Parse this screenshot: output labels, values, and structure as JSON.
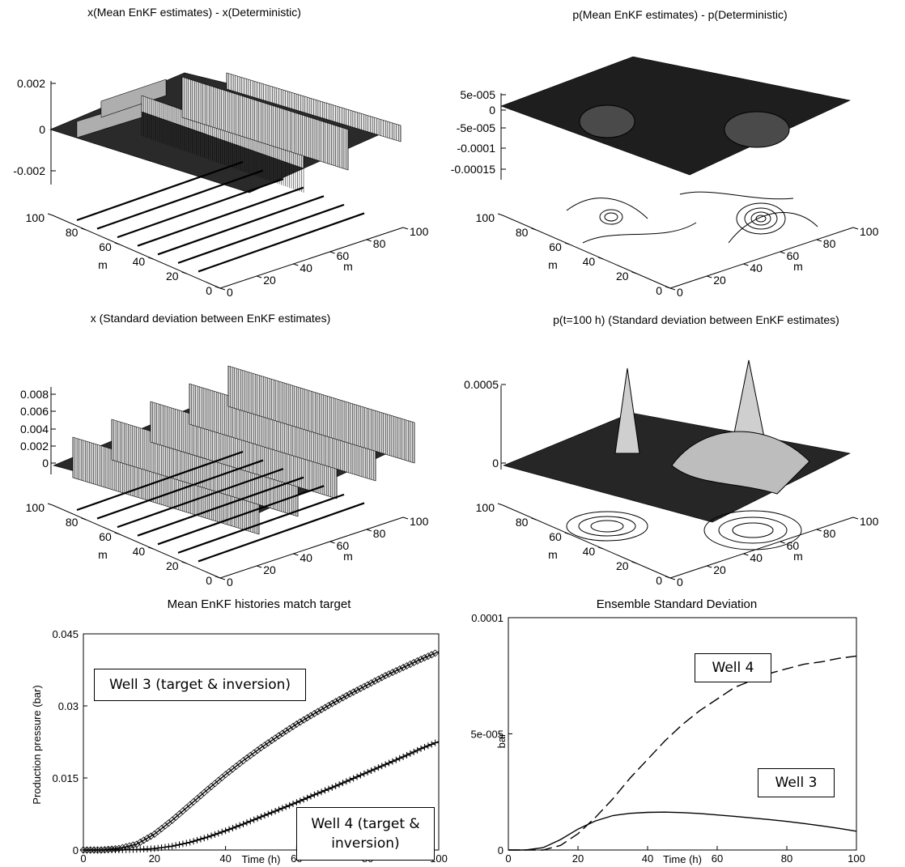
{
  "chart_data": [
    {
      "type": "surface",
      "title": "x(Mean EnKF estimates) - x(Deterministic)",
      "zticks": [
        "0.002",
        "0",
        "-0.002"
      ],
      "xticks": [
        "0",
        "20",
        "40",
        "60",
        "80",
        "100"
      ],
      "yticks": [
        "0",
        "20",
        "40",
        "60",
        "80",
        "100"
      ],
      "xlabel": "m",
      "ylabel": "m"
    },
    {
      "type": "surface",
      "title": "p(Mean EnKF estimates) - p(Deterministic)",
      "zticks": [
        "5e-005",
        "0",
        "-5e-005",
        "-0.0001",
        "-0.00015"
      ],
      "xticks": [
        "0",
        "20",
        "40",
        "60",
        "80",
        "100"
      ],
      "yticks": [
        "0",
        "20",
        "40",
        "60",
        "80",
        "100"
      ],
      "xlabel": "m",
      "ylabel": "m"
    },
    {
      "type": "surface",
      "title": "x (Standard deviation between EnKF estimates)",
      "zticks": [
        "0.008",
        "0.006",
        "0.004",
        "0.002",
        "0"
      ],
      "xticks": [
        "0",
        "20",
        "40",
        "60",
        "80",
        "100"
      ],
      "yticks": [
        "0",
        "20",
        "40",
        "60",
        "80",
        "100"
      ],
      "xlabel": "m",
      "ylabel": "m"
    },
    {
      "type": "surface",
      "title": "p(t=100 h) (Standard deviation between EnKF estimates)",
      "zticks": [
        "0.0005",
        "0"
      ],
      "xticks": [
        "0",
        "20",
        "40",
        "60",
        "80",
        "100"
      ],
      "yticks": [
        "0",
        "20",
        "40",
        "60",
        "80",
        "100"
      ],
      "xlabel": "m",
      "ylabel": "m"
    },
    {
      "type": "line",
      "title": "Mean EnKF histories match target",
      "xlabel": "Time (h)",
      "ylabel": "Production pressure (bar)",
      "xlim": [
        0,
        100
      ],
      "ylim": [
        0,
        0.045
      ],
      "xticks": [
        "0",
        "20",
        "40",
        "60",
        "80",
        "100"
      ],
      "yticks": [
        "0",
        "0.015",
        "0.03",
        "0.045"
      ],
      "series": [
        {
          "name": "Well 3 (target & inversion)",
          "marker": "diamond",
          "x": [
            0,
            5,
            10,
            15,
            20,
            25,
            30,
            35,
            40,
            45,
            50,
            55,
            60,
            65,
            70,
            75,
            80,
            85,
            90,
            95,
            100
          ],
          "y": [
            0,
            0,
            0.0003,
            0.0012,
            0.0033,
            0.0062,
            0.0094,
            0.0126,
            0.0157,
            0.0186,
            0.0213,
            0.0238,
            0.0262,
            0.0284,
            0.0305,
            0.0325,
            0.0344,
            0.0363,
            0.038,
            0.0397,
            0.0413
          ]
        },
        {
          "name": "Well 4 (target & inversion)",
          "marker": "plus",
          "x": [
            0,
            5,
            10,
            15,
            20,
            25,
            30,
            35,
            40,
            45,
            50,
            55,
            60,
            65,
            70,
            75,
            80,
            85,
            90,
            95,
            100
          ],
          "y": [
            0,
            0,
            0,
            0.0001,
            0.0003,
            0.0008,
            0.0016,
            0.0027,
            0.004,
            0.0054,
            0.0069,
            0.0084,
            0.0099,
            0.0115,
            0.013,
            0.0146,
            0.0162,
            0.0178,
            0.0194,
            0.0211,
            0.0226
          ]
        }
      ]
    },
    {
      "type": "line",
      "title": "Ensemble Standard Deviation",
      "xlabel": "Time (h)",
      "ylabel": "bar",
      "xlim": [
        0,
        100
      ],
      "ylim": [
        0,
        0.0001
      ],
      "xticks": [
        "0",
        "20",
        "40",
        "60",
        "80",
        "100"
      ],
      "yticks": [
        "0",
        "5e-005",
        "0.0001"
      ],
      "series": [
        {
          "name": "Well 3",
          "style": "solid",
          "x": [
            0,
            5,
            10,
            15,
            20,
            25,
            30,
            35,
            40,
            45,
            50,
            55,
            60,
            65,
            70,
            75,
            80,
            85,
            90,
            95,
            100
          ],
          "y": [
            0,
            0,
            1e-06,
            4.5e-06,
            9e-06,
            1.25e-05,
            1.48e-05,
            1.58e-05,
            1.62e-05,
            1.63e-05,
            1.61e-05,
            1.57e-05,
            1.51e-05,
            1.45e-05,
            1.38e-05,
            1.31e-05,
            1.23e-05,
            1.14e-05,
            1.04e-05,
            9.3e-06,
            8.1e-06
          ]
        },
        {
          "name": "Well 4",
          "style": "dashed",
          "x": [
            0,
            5,
            10,
            15,
            20,
            25,
            30,
            35,
            40,
            45,
            50,
            55,
            60,
            65,
            70,
            75,
            80,
            85,
            90,
            95,
            100
          ],
          "y": [
            0,
            0,
            0,
            2e-06,
            7e-06,
            1.4e-05,
            2.2e-05,
            3.1e-05,
            3.9e-05,
            4.7e-05,
            5.4e-05,
            6e-05,
            6.5e-05,
            7e-05,
            7.3e-05,
            7.6e-05,
            7.8e-05,
            8e-05,
            8.1e-05,
            8.25e-05,
            8.35e-05
          ]
        }
      ]
    }
  ]
}
